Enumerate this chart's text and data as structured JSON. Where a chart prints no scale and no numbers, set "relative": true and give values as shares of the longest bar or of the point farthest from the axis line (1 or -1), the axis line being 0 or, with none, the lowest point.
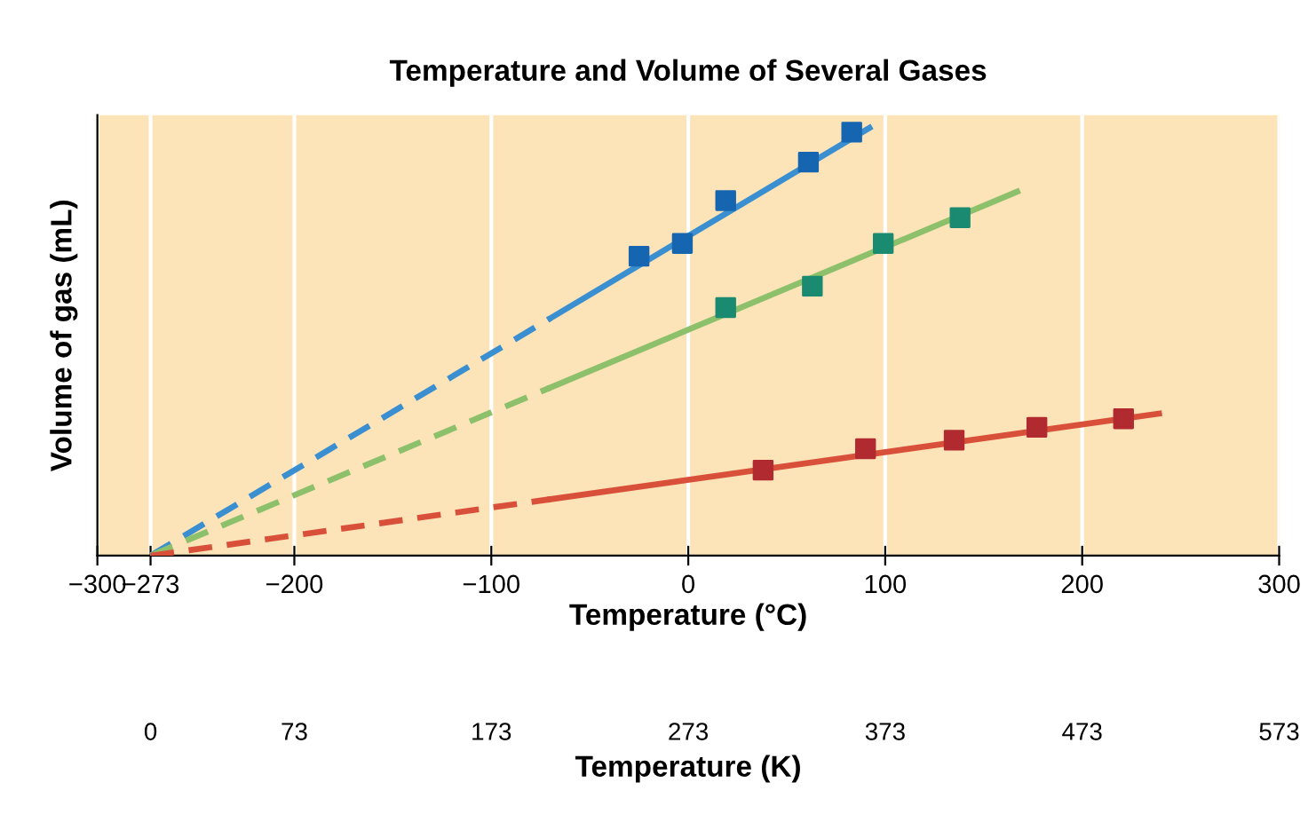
{
  "chart_data": {
    "type": "line",
    "title": "Temperature and Volume of Several Gases",
    "xlabel": "Temperature (°C)",
    "ylabel": "Volume of gas (mL)",
    "x2label": "Temperature (K)",
    "relative": true,
    "xlim": [
      -300,
      300
    ],
    "xticks": [
      -300,
      -273,
      -200,
      -100,
      0,
      100,
      200,
      300
    ],
    "x2lim": [
      -27,
      573
    ],
    "x2ticks": [
      0,
      73,
      173,
      273,
      373,
      473,
      573
    ],
    "grid": "x",
    "series": [
      {
        "color": "#3a8fd0",
        "line_style": "dashed",
        "marker": "none",
        "x": [
          -273,
          -70
        ],
        "values": [
          0,
          0.555
        ]
      },
      {
        "color": "#3a8fd0",
        "line_style": "solid",
        "marker": "none",
        "x": [
          -70,
          92
        ],
        "values": [
          0.555,
          1.0
        ]
      },
      {
        "type": "scatter",
        "color": "#1565b0",
        "marker": "square",
        "x": [
          -25,
          -3,
          19,
          61,
          83
        ],
        "values": [
          0.7,
          0.73,
          0.83,
          0.92,
          0.99
        ]
      },
      {
        "color": "#8cc06a",
        "line_style": "dashed",
        "marker": "none",
        "x": [
          -273,
          -70
        ],
        "values": [
          0,
          0.393
        ]
      },
      {
        "color": "#8cc06a",
        "line_style": "solid",
        "marker": "none",
        "x": [
          -70,
          167
        ],
        "values": [
          0.393,
          0.851
        ]
      },
      {
        "type": "scatter",
        "color": "#1a8a70",
        "marker": "square",
        "x": [
          19,
          63,
          99,
          138
        ],
        "values": [
          0.58,
          0.63,
          0.73,
          0.79
        ]
      },
      {
        "color": "#d9503a",
        "line_style": "dashed",
        "marker": "none",
        "x": [
          -273,
          -70
        ],
        "values": [
          0,
          0.132
        ]
      },
      {
        "color": "#d9503a",
        "line_style": "solid",
        "marker": "none",
        "x": [
          -70,
          239
        ],
        "values": [
          0.132,
          0.332
        ]
      },
      {
        "type": "scatter",
        "color": "#b02a30",
        "marker": "square",
        "x": [
          38,
          90,
          135,
          177,
          221
        ],
        "values": [
          0.2,
          0.25,
          0.27,
          0.3,
          0.32
        ]
      }
    ]
  }
}
